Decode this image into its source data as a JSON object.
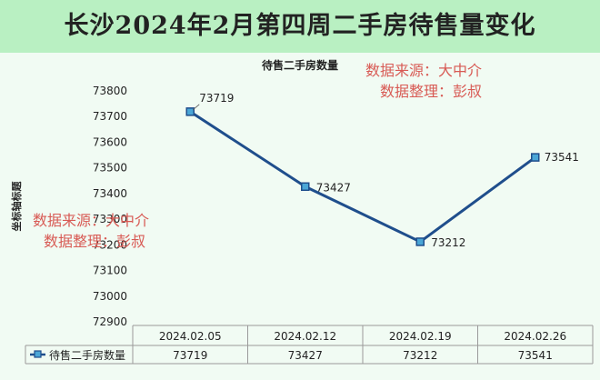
{
  "page_title": "长沙2024年2月第四周二手房待售量变化",
  "watermark": {
    "line1": "数据来源：大中介",
    "line2": "数据整理：彭叔"
  },
  "colors": {
    "title_bg": "#b9f0c2",
    "plot_bg": "#f1fbf3",
    "series_line": "#1f4e8c",
    "marker_fill": "#4aa6d6",
    "watermark": "#d85a54"
  },
  "chart_data": {
    "type": "line",
    "title": "待售二手房数量",
    "ylabel": "坐标轴标题",
    "xlabel": "",
    "ylim": [
      72900,
      73800
    ],
    "ytick_step": 100,
    "grid": false,
    "categories": [
      "2024.02.05",
      "2024.02.12",
      "2024.02.19",
      "2024.02.26"
    ],
    "series": [
      {
        "name": "待售二手房数量",
        "values": [
          73719,
          73427,
          73212,
          73541
        ]
      }
    ],
    "data_table": true
  }
}
